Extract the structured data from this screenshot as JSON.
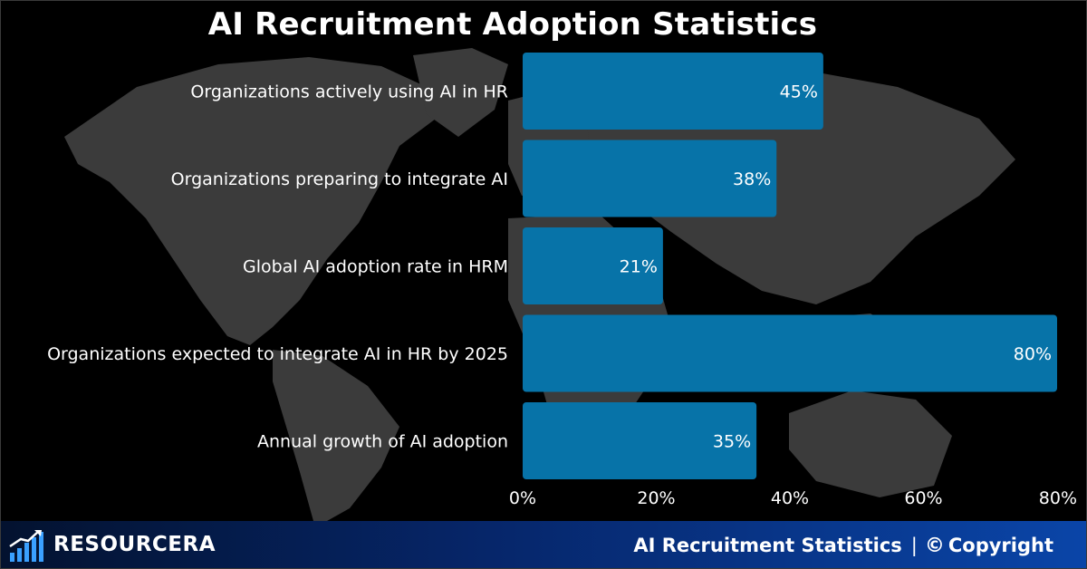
{
  "title": "AI Recruitment Adoption Statistics",
  "chart_data": {
    "type": "bar",
    "orientation": "horizontal",
    "title": "AI Recruitment Adoption Statistics",
    "categories": [
      "Organizations actively using AI in HR",
      "Organizations preparing to integrate AI",
      "Global AI adoption rate in HRM",
      "Organizations expected to integrate AI in HR by 2025",
      "Annual growth of AI adoption"
    ],
    "values": [
      45,
      38,
      21,
      80,
      35
    ],
    "value_labels": [
      "45%",
      "38%",
      "21%",
      "80%",
      "35%"
    ],
    "xlim": [
      0,
      80
    ],
    "x_ticks": [
      0,
      20,
      40,
      60,
      80
    ],
    "x_tick_labels": [
      "0%",
      "20%",
      "40%",
      "60%",
      "80%"
    ],
    "grid": false,
    "legend": "none",
    "bar_color": "#0773a8",
    "text_color": "#ffffff"
  },
  "footer": {
    "brand": "RESOURCERA",
    "right_text": "AI Recruitment Statistics",
    "separator": "|",
    "copyright_symbol": "©",
    "copyright": "Copyright"
  },
  "colors": {
    "background": "#000000",
    "map": "#3b3b3b",
    "bar": "#0773a8",
    "footer_dark": "#03122f",
    "footer_light": "#0a45a8"
  },
  "icons": {
    "brand_logo": "bar-chart-rising-arrow-icon",
    "copyright": "copyright-icon"
  }
}
